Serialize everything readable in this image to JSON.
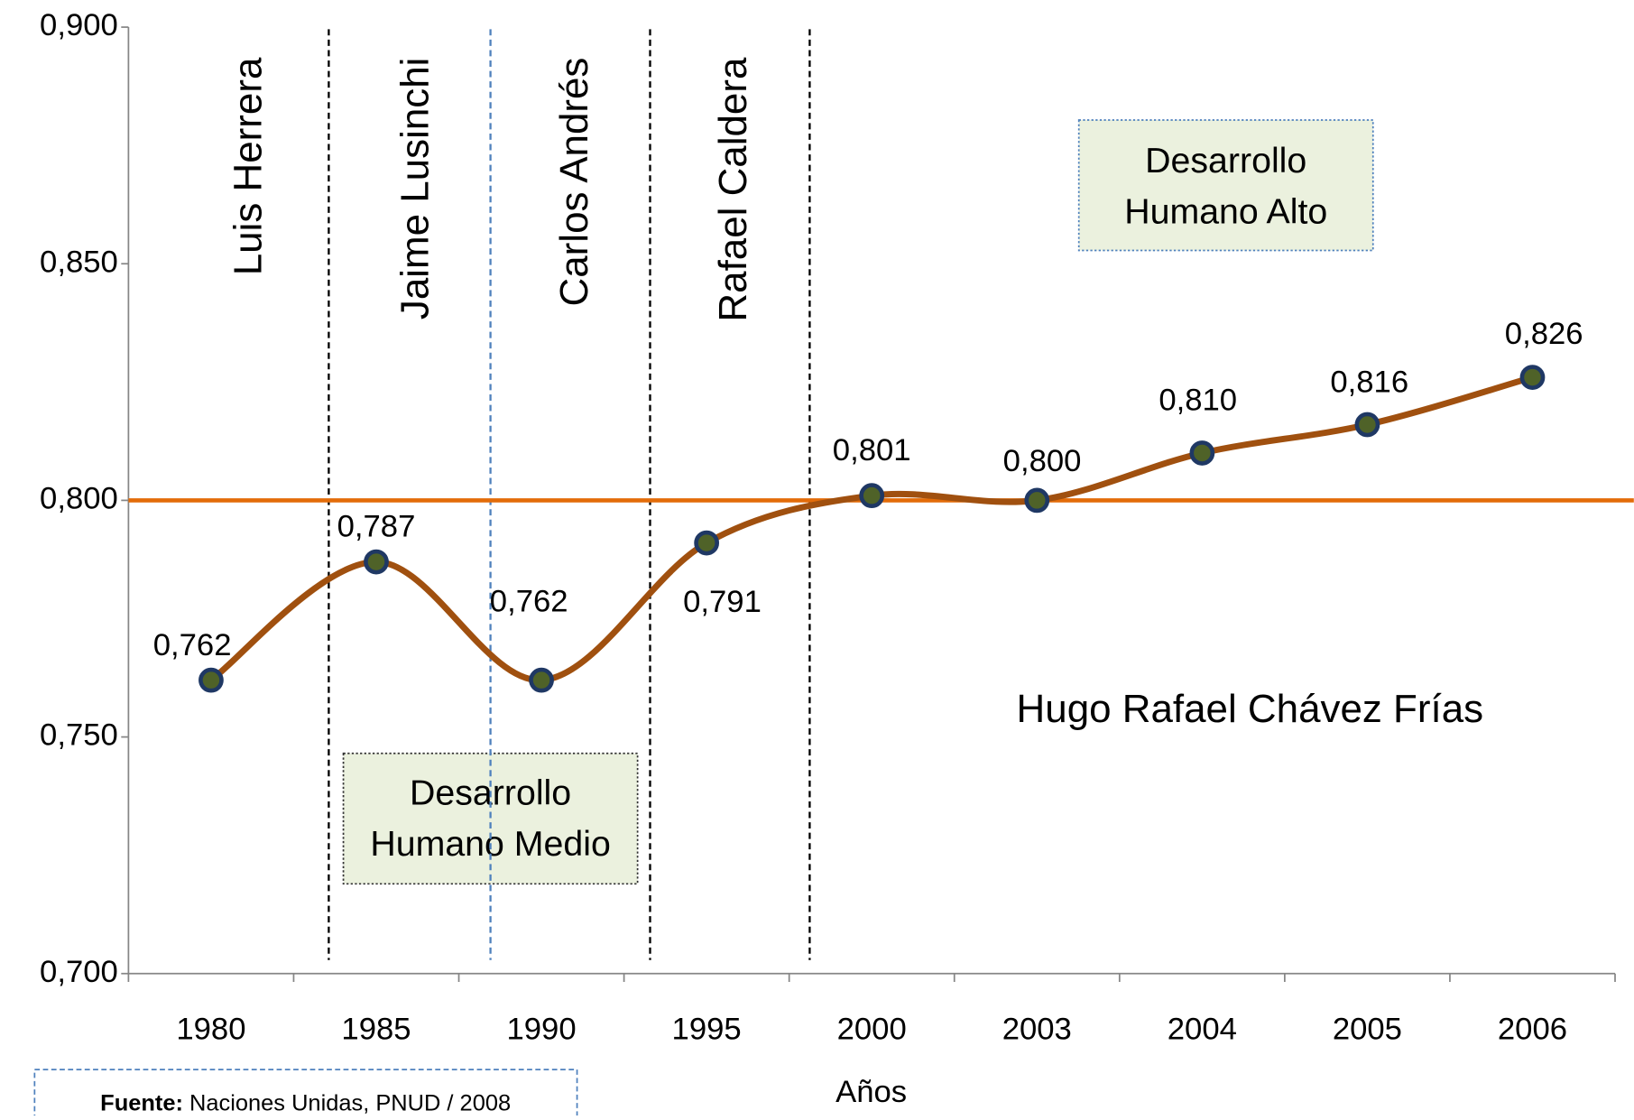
{
  "chart_data": {
    "type": "line",
    "categories": [
      "1980",
      "1985",
      "1990",
      "1995",
      "2000",
      "2003",
      "2004",
      "2005",
      "2006"
    ],
    "values": [
      0.762,
      0.787,
      0.762,
      0.791,
      0.801,
      0.8,
      0.81,
      0.816,
      0.826
    ],
    "value_labels": [
      "0,762",
      "0,787",
      "0,762",
      "0,791",
      "0,801",
      "0,800",
      "0,810",
      "0,816",
      "0,826"
    ],
    "color": "#a0500f",
    "marker_color": "#4f6228",
    "marker_edge": "#1f3864",
    "ylim": [
      0.7,
      0.9
    ],
    "yticks": [
      {
        "value": 0.7,
        "label": "0,700"
      },
      {
        "value": 0.75,
        "label": "0,750"
      },
      {
        "value": 0.8,
        "label": "0,800"
      },
      {
        "value": 0.85,
        "label": "0,850"
      },
      {
        "value": 0.9,
        "label": "0,900"
      }
    ],
    "xlabel": "Años",
    "reference_line": {
      "value": 0.8,
      "color": "#e36c09"
    },
    "presidents": [
      "Luis Herrera",
      "Jaime Lusinchi",
      "Carlos Andrés",
      "Rafael Caldera"
    ],
    "last_president": "Hugo Rafael Chávez Frías",
    "box_high": [
      "Desarrollo",
      "Humano Alto"
    ],
    "box_medium": [
      "Desarrollo",
      "Humano Medio"
    ],
    "source_label": "Fuente:",
    "source_text": " Naciones  Unidas, PNUD / 2008"
  }
}
